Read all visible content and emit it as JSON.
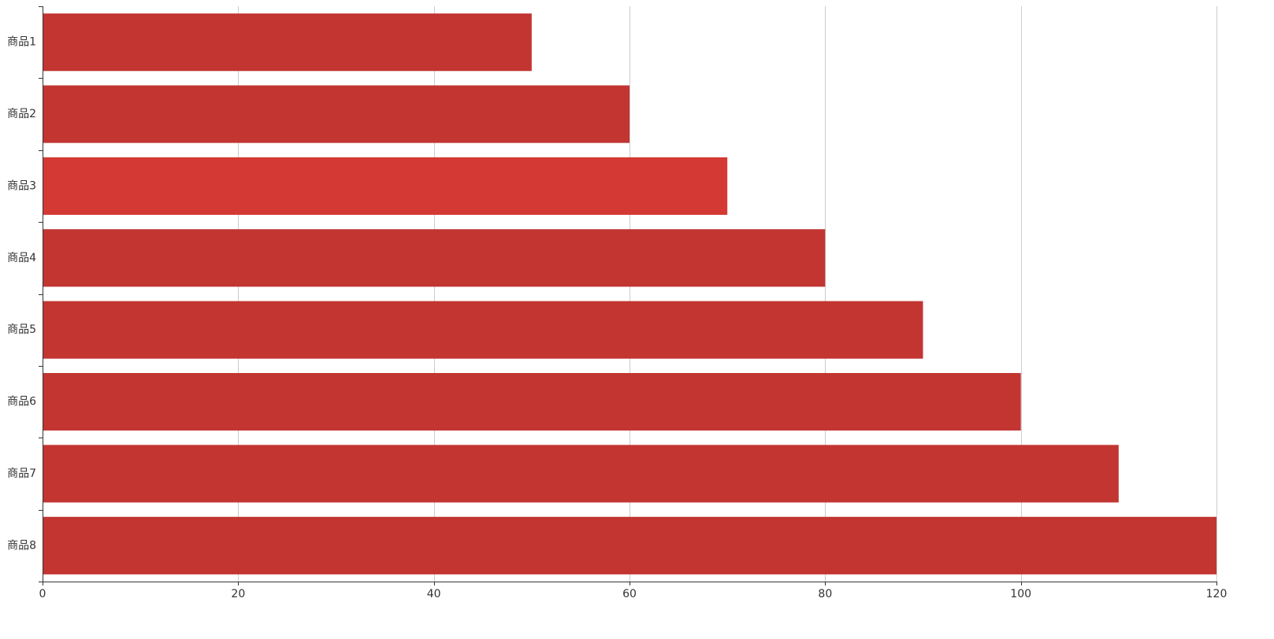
{
  "chart_data": {
    "type": "bar",
    "orientation": "horizontal",
    "categories": [
      "商品1",
      "商品2",
      "商品3",
      "商品4",
      "商品5",
      "商品6",
      "商品7",
      "商品8"
    ],
    "values": [
      50,
      60,
      70,
      80,
      90,
      100,
      110,
      120
    ],
    "xticks": [
      0,
      20,
      40,
      60,
      80,
      100,
      120
    ],
    "xlim": [
      0,
      120
    ],
    "grid": true,
    "bar_color": "#c23531",
    "highlight_color": "#d43a33",
    "highlighted_index": 2
  }
}
